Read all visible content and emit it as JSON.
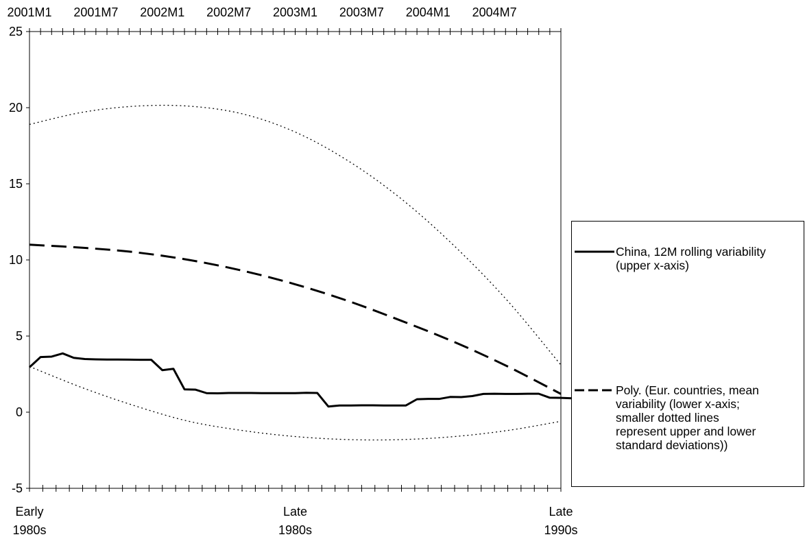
{
  "chart_data": {
    "type": "line",
    "title": "",
    "y_axis": {
      "ylim": [
        -5,
        25
      ],
      "ticks": [
        -5,
        0,
        5,
        10,
        15,
        20,
        25
      ],
      "tick_labels": [
        "-5",
        "0",
        "5",
        "10",
        "15",
        "20",
        "25"
      ]
    },
    "upper_x_axis": {
      "tick_labels": [
        "2001M1",
        "2001M7",
        "2002M1",
        "2002M7",
        "2003M1",
        "2003M7",
        "2004M1",
        "2004M7"
      ],
      "minor_tick_count": 48
    },
    "lower_x_axis": {
      "tick_labels": [
        "Early\n1980s",
        "Late\n1980s",
        "Late\n1990s"
      ],
      "tick_positions": [
        0,
        0.5,
        1.0
      ],
      "minor_tick_count": 40
    },
    "series": [
      {
        "name": "China, 12M rolling variability (upper x-axis)",
        "style": "solid",
        "color": "#000000",
        "x_unit": "month index from 2001M1",
        "values": [
          2.95,
          3.62,
          3.65,
          3.86,
          3.57,
          3.49,
          3.47,
          3.46,
          3.46,
          3.45,
          3.44,
          3.44,
          2.76,
          2.85,
          1.5,
          1.48,
          1.25,
          1.24,
          1.26,
          1.26,
          1.26,
          1.25,
          1.25,
          1.25,
          1.25,
          1.27,
          1.26,
          0.37,
          0.44,
          0.44,
          0.45,
          0.45,
          0.44,
          0.44,
          0.44,
          0.85,
          0.87,
          0.87,
          1.0,
          0.99,
          1.06,
          1.2,
          1.21,
          1.2,
          1.2,
          1.21,
          1.21,
          0.95,
          0.94,
          0.91,
          0.8,
          0.79
        ]
      },
      {
        "name": "Poly. (Eur. countries, mean variability (lower x-axis; smaller dotted lines represent upper and lower standard deviations))",
        "style": "dashed",
        "color": "#000000",
        "x": [
          0,
          0.1,
          0.2,
          0.3,
          0.4,
          0.5,
          0.6,
          0.7,
          0.8,
          0.9,
          1.0
        ],
        "values": [
          11.0,
          10.8,
          10.5,
          10.0,
          9.3,
          8.4,
          7.3,
          6.0,
          4.6,
          3.0,
          1.2
        ]
      },
      {
        "style": "dotted",
        "color": "#000000",
        "x": [
          0,
          0.1,
          0.2,
          0.3,
          0.4,
          0.5,
          0.6,
          0.7,
          0.8,
          0.9,
          1.0
        ],
        "values": [
          18.9,
          19.7,
          20.1,
          20.1,
          19.6,
          18.4,
          16.5,
          14.0,
          10.9,
          7.3,
          3.1
        ]
      },
      {
        "style": "dotted",
        "color": "#000000",
        "x": [
          0,
          0.1,
          0.2,
          0.3,
          0.4,
          0.5,
          0.6,
          0.7,
          0.8,
          0.9,
          1.0
        ],
        "values": [
          3.0,
          1.6,
          0.4,
          -0.6,
          -1.2,
          -1.6,
          -1.8,
          -1.8,
          -1.6,
          -1.2,
          -0.6
        ]
      }
    ],
    "legend": {
      "position": "right",
      "entries": [
        {
          "label": "China, 12M rolling variability\n(upper x-axis)",
          "style": "solid"
        },
        {
          "label": "Poly. (Eur. countries, mean\nvariability (lower x-axis;\nsmaller dotted lines\nrepresent upper and lower\nstandard deviations))",
          "style": "dashed"
        }
      ]
    },
    "grid": false
  }
}
